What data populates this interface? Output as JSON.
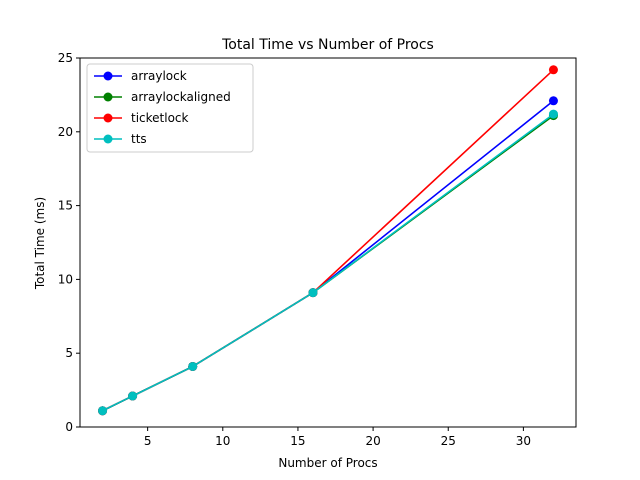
{
  "chart_data": {
    "type": "line",
    "title": "Total Time vs Number of Procs",
    "xlabel": "Number of Procs",
    "ylabel": "Total Time (ms)",
    "xlim": [
      0.5,
      33.5
    ],
    "ylim": [
      0,
      25
    ],
    "xticks": [
      5,
      10,
      15,
      20,
      25,
      30
    ],
    "yticks": [
      0,
      5,
      10,
      15,
      20,
      25
    ],
    "grid": false,
    "legend_position": "upper-left",
    "x": [
      2,
      4,
      8,
      16,
      32
    ],
    "series": [
      {
        "name": "arraylock",
        "color": "#0000ff",
        "values": [
          1.1,
          2.1,
          4.1,
          9.1,
          22.1
        ]
      },
      {
        "name": "arraylockaligned",
        "color": "#008000",
        "values": [
          1.1,
          2.1,
          4.1,
          9.1,
          21.1
        ]
      },
      {
        "name": "ticketlock",
        "color": "#ff0000",
        "values": [
          1.1,
          2.1,
          4.1,
          9.1,
          24.2
        ]
      },
      {
        "name": "tts",
        "color": "#00bfbf",
        "values": [
          1.1,
          2.1,
          4.1,
          9.1,
          21.2
        ]
      }
    ]
  }
}
